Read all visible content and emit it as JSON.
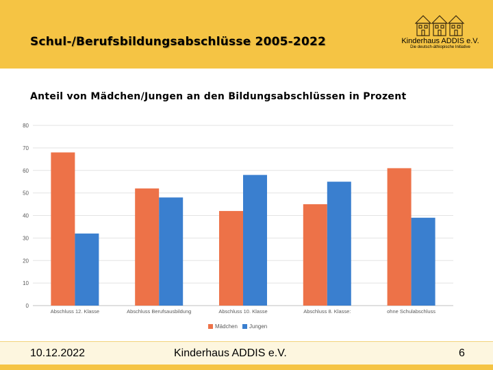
{
  "header": {
    "title": "Schul-/Berufsbildungsabschlüsse 2005-2022",
    "logo_name": "Kinderhaus ADDIS e.V.",
    "logo_tagline": "Die deutsch-äthiopische Initiative"
  },
  "subtitle": "Anteil von Mädchen/Jungen an den Bildungsabschlüssen in Prozent",
  "footer": {
    "date": "10.12.2022",
    "org": "Kinderhaus ADDIS e.V.",
    "page": "6"
  },
  "colors": {
    "header_bg": "#f5c444",
    "maedchen": "#ed7248",
    "jungen": "#3a7fcf",
    "grid": "#e3e3e3"
  },
  "chart_data": {
    "type": "bar",
    "title": "Anteil von Mädchen/Jungen an den Bildungsabschlüssen in Prozent",
    "categories": [
      "Abschluss 12. Klasse",
      "Abschluss Berufsausbildung",
      "Abschluss 10. Klasse",
      "Abschluss 8. Klasse:",
      "ohne Schulabschluss"
    ],
    "series": [
      {
        "name": "Mädchen",
        "values": [
          68,
          52,
          42,
          45,
          61
        ]
      },
      {
        "name": "Jungen",
        "values": [
          32,
          48,
          58,
          55,
          39
        ]
      }
    ],
    "yticks": [
      "0",
      "10",
      "20",
      "30",
      "40",
      "50",
      "60",
      "70",
      "80"
    ],
    "ylim": [
      0,
      80
    ],
    "xlabel": "",
    "ylabel": "",
    "grid": true,
    "legend": "bottom"
  }
}
